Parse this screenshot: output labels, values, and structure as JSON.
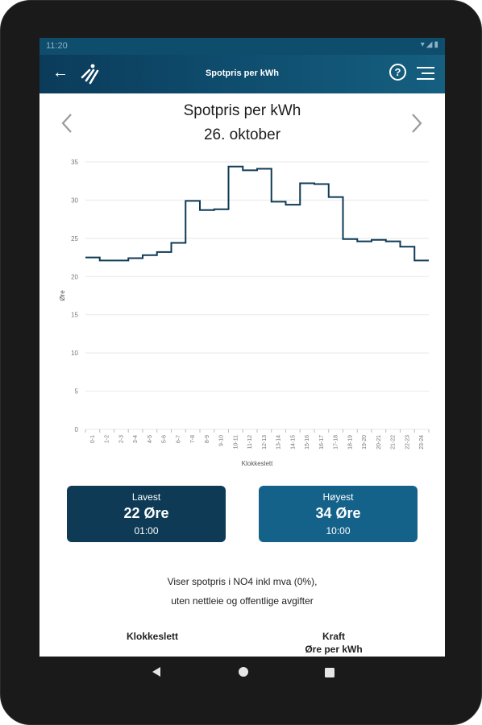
{
  "status_bar": {
    "time": "11:20"
  },
  "app_bar": {
    "title": "Spotpris per kWh"
  },
  "header": {
    "title": "Spotpris per kWh",
    "date": "26. oktober"
  },
  "chart_data": {
    "type": "line",
    "step": true,
    "ylabel": "Øre",
    "xlabel": "Klokkeslett",
    "ylim": [
      0,
      35
    ],
    "yticks": [
      0,
      5,
      10,
      15,
      20,
      25,
      30,
      35
    ],
    "grid": true,
    "categories": [
      "0-1",
      "1-2",
      "2-3",
      "3-4",
      "4-5",
      "5-6",
      "6-7",
      "7-8",
      "8-9",
      "9-10",
      "10-11",
      "11-12",
      "12-13",
      "13-14",
      "14-15",
      "15-16",
      "16-17",
      "17-18",
      "18-19",
      "19-20",
      "20-21",
      "21-22",
      "22-23",
      "23-24"
    ],
    "values": [
      22.5,
      22.1,
      22.1,
      22.4,
      22.8,
      23.2,
      24.4,
      29.9,
      28.7,
      28.8,
      34.4,
      33.9,
      34.1,
      29.8,
      29.4,
      32.2,
      32.1,
      30.4,
      24.9,
      24.6,
      24.8,
      24.6,
      23.9,
      22.1
    ],
    "line_color": "#0e3a56"
  },
  "summary": {
    "low": {
      "label": "Lavest",
      "value": "22 Øre",
      "time": "01:00",
      "color": "#0e3a56"
    },
    "high": {
      "label": "Høyest",
      "value": "34 Øre",
      "time": "10:00",
      "color": "#14628a"
    }
  },
  "info": {
    "line1": "Viser spotpris i NO4 inkl mva (0%),",
    "line2": "uten nettleie og offentlige avgifter"
  },
  "table": {
    "col_time": "Klokkeslett",
    "col_power": "Kraft",
    "col_power_sub": "Øre per kWh"
  },
  "icons": {
    "back": "arrow-left-icon",
    "logo": "app-logo-icon",
    "help": "help-circle-icon",
    "menu": "menu-icon",
    "prev": "chevron-left-icon",
    "next": "chevron-right-icon"
  }
}
